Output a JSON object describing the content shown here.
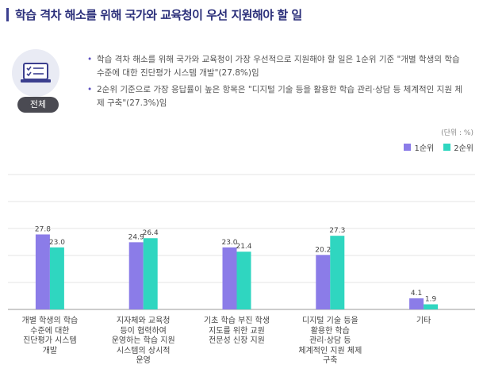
{
  "title": "학습 격차 해소를 위해 국가와 교육청이 우선 지원해야 할 일",
  "badge": "전체",
  "notes": [
    "학습 격차 해소를 위해 국가와 교육청이 가장 우선적으로 지원해야 할 일은 1순위 기준 \"개별 학생의 학습 수준에 대한 진단평가 시스템 개발\"(27.8%)임",
    "2순위 기준으로 가장 응답률이 높은 항목은 \"디지털 기술 등을 활용한 학습 관리·상담 등 체계적인 지원 체제 구축\"(27.3%)임"
  ],
  "unit": "(단위 : %)",
  "colors": {
    "series1": "#8b7ce8",
    "series2": "#2fd6c0",
    "title": "#2b2f7a"
  },
  "chart_data": {
    "type": "bar",
    "categories": [
      "개별 학생의 학습 수준에 대한 진단평가 시스템 개발",
      "지자체와 교육청 등이 협력하여 운영하는 학습 지원 시스템의 상시적 운영",
      "기초 학습 부진 학생 지도를 위한 교원 전문성 신장 지원",
      "디지털 기술 등을 활용한 학습 관리·상담 등 체계적인 지원 체제 구축",
      "기타"
    ],
    "category_lines": [
      [
        "개별 학생의 학습",
        "수준에 대한",
        "진단평가 시스템",
        "개발"
      ],
      [
        "지자체와 교육청",
        "등이 협력하여",
        "운영하는 학습 지원",
        "시스템의 상시적",
        "운영"
      ],
      [
        "기초 학습 부진 학생",
        "지도를 위한 교원",
        "전문성 신장 지원"
      ],
      [
        "디지털 기술 등을",
        "활용한 학습",
        "관리·상담 등",
        "체계적인 지원 체제",
        "구축"
      ],
      [
        "기타"
      ]
    ],
    "series": [
      {
        "name": "1순위",
        "values": [
          27.8,
          24.9,
          23.0,
          20.2,
          4.1
        ]
      },
      {
        "name": "2순위",
        "values": [
          23.0,
          26.4,
          21.4,
          27.3,
          1.9
        ]
      }
    ],
    "ylim": [
      0,
      50
    ],
    "grid": true,
    "legend": "top-right"
  }
}
